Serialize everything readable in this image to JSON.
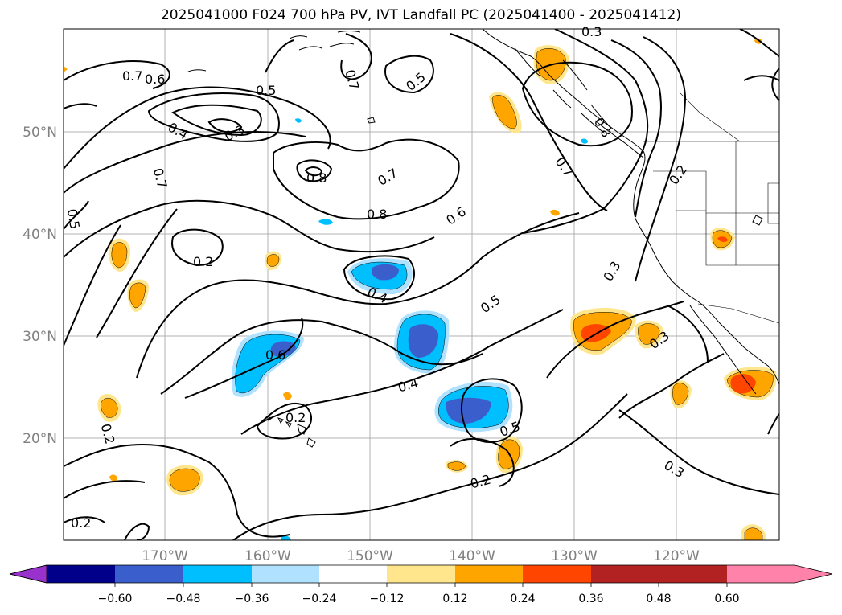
{
  "title": "2025041000 F024 700 hPa PV, IVT Landfall PC (2025041400 - 2025041412)",
  "axes": {
    "lat_labels": [
      "50°N",
      "40°N",
      "30°N",
      "20°N"
    ],
    "lon_labels": [
      "170°W",
      "160°W",
      "150°W",
      "140°W",
      "130°W",
      "120°W"
    ],
    "gridlines": true
  },
  "contour_labels": [
    "0.3",
    "0.7",
    "0.6",
    "0.7",
    "0.5",
    "0.5",
    "0.3",
    "0.4",
    "0.8",
    "0.7",
    "0.7",
    "0.8",
    "0.8",
    "0.2",
    "0.7",
    "0.5",
    "0.6",
    "0.2",
    "0.4",
    "0.3",
    "0.5",
    "0.6",
    "0.3",
    "0.4",
    "0.2",
    "0.2",
    "0.5",
    "0.2",
    "0.3",
    "0.2"
  ],
  "colorbar": {
    "colors": [
      "#9932cc",
      "#00008b",
      "#3a5fcd",
      "#00bfff",
      "#b0e2ff",
      "#ffffff",
      "#ffe68c",
      "#ffa500",
      "#ff4500",
      "#b22222",
      "#ff82ab"
    ],
    "tick_labels": [
      "−0.60",
      "−0.48",
      "−0.36",
      "−0.24",
      "−0.12",
      "0.12",
      "0.24",
      "0.36",
      "0.48",
      "0.60"
    ],
    "extend": "both"
  },
  "colors": {
    "gridline": "#b0b0b0",
    "contour": "#000000",
    "coastline": "#000000"
  }
}
